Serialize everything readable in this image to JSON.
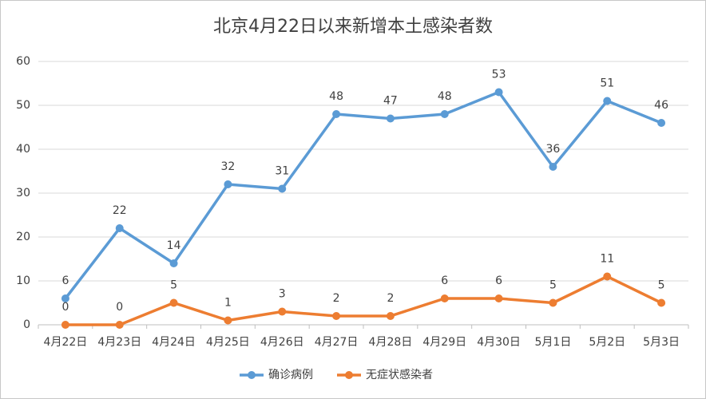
{
  "chart_data": {
    "type": "line",
    "title": "北京4月22日以来新增本土感染者数",
    "categories": [
      "4月22日",
      "4月23日",
      "4月24日",
      "4月25日",
      "4月26日",
      "4月27日",
      "4月28日",
      "4月29日",
      "4月30日",
      "5月1日",
      "5月2日",
      "5月3日"
    ],
    "series": [
      {
        "name": "确诊病例",
        "color": "#5b9bd5",
        "values": [
          6,
          22,
          14,
          32,
          31,
          48,
          47,
          48,
          53,
          36,
          51,
          46
        ]
      },
      {
        "name": "无症状感染者",
        "color": "#ed7d31",
        "values": [
          0,
          0,
          5,
          1,
          3,
          2,
          2,
          6,
          6,
          5,
          11,
          5
        ]
      }
    ],
    "ylim": [
      0,
      60
    ],
    "yticks": [
      0,
      10,
      20,
      30,
      40,
      50,
      60
    ],
    "grid": true,
    "legend": "bottom"
  }
}
